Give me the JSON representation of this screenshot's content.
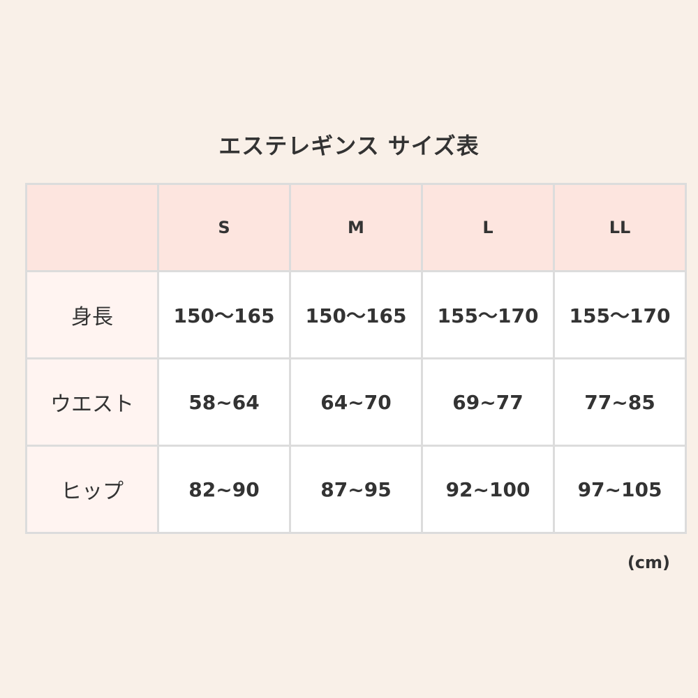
{
  "title": "エステレギンス サイズ表",
  "headers": [
    "",
    "S",
    "M",
    "L",
    "LL"
  ],
  "rows": [
    {
      "label": "身長",
      "values": [
        "150〜165",
        "150〜165",
        "155〜170",
        "155〜170"
      ]
    },
    {
      "label": "ウエスト",
      "values": [
        "58~64",
        "64~70",
        "69~77",
        "77~85"
      ]
    },
    {
      "label": "ヒップ",
      "values": [
        "82~90",
        "87~95",
        "92~100",
        "97~105"
      ]
    }
  ],
  "unit": "(cm)",
  "colors": {
    "background": "#f9f0e8",
    "header": "#fde5df",
    "label_column": "#fff4f1",
    "border": "#dcdcdc",
    "text": "#333333"
  }
}
